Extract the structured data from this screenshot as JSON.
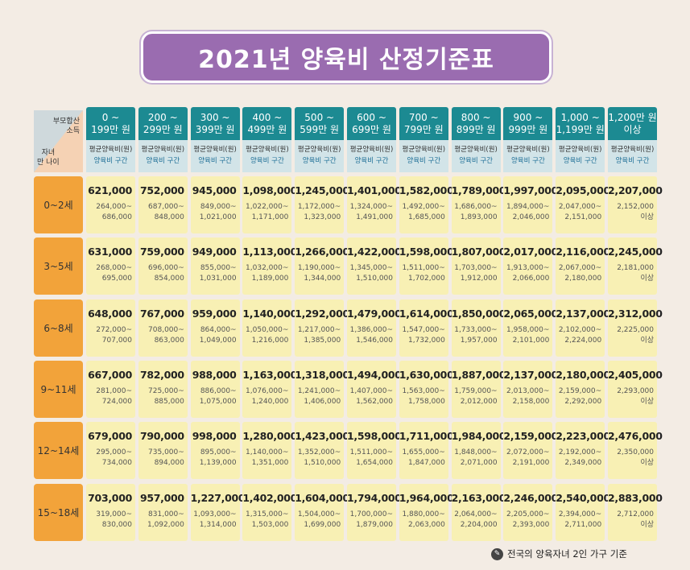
{
  "title": "2021년 양육비 산정기준표",
  "corner": {
    "top_line1": "부모합산",
    "top_line2": "소득",
    "bottom_line1": "자녀",
    "bottom_line2": "만 나이"
  },
  "sub_header": {
    "line1": "평균양육비(원)",
    "line2": "양육비 구간"
  },
  "income_brackets": [
    {
      "l1": "0 ~",
      "l2": "199만 원"
    },
    {
      "l1": "200 ~",
      "l2": "299만 원"
    },
    {
      "l1": "300 ~",
      "l2": "399만 원"
    },
    {
      "l1": "400 ~",
      "l2": "499만 원"
    },
    {
      "l1": "500 ~",
      "l2": "599만 원"
    },
    {
      "l1": "600 ~",
      "l2": "699만 원"
    },
    {
      "l1": "700 ~",
      "l2": "799만 원"
    },
    {
      "l1": "800 ~",
      "l2": "899만 원"
    },
    {
      "l1": "900 ~",
      "l2": "999만 원"
    },
    {
      "l1": "1,000 ~",
      "l2": "1,199만 원"
    },
    {
      "l1": "1,200만 원",
      "l2": "이상"
    }
  ],
  "rows": [
    {
      "age": "0~2세",
      "cells": [
        {
          "avg": "621,000",
          "r1": "264,000~",
          "r2": "686,000"
        },
        {
          "avg": "752,000",
          "r1": "687,000~",
          "r2": "848,000"
        },
        {
          "avg": "945,000",
          "r1": "849,000~",
          "r2": "1,021,000"
        },
        {
          "avg": "1,098,000",
          "r1": "1,022,000~",
          "r2": "1,171,000"
        },
        {
          "avg": "1,245,000",
          "r1": "1,172,000~",
          "r2": "1,323,000"
        },
        {
          "avg": "1,401,000",
          "r1": "1,324,000~",
          "r2": "1,491,000"
        },
        {
          "avg": "1,582,000",
          "r1": "1,492,000~",
          "r2": "1,685,000"
        },
        {
          "avg": "1,789,000",
          "r1": "1,686,000~",
          "r2": "1,893,000"
        },
        {
          "avg": "1,997,000",
          "r1": "1,894,000~",
          "r2": "2,046,000"
        },
        {
          "avg": "2,095,000",
          "r1": "2,047,000~",
          "r2": "2,151,000"
        },
        {
          "avg": "2,207,000",
          "r1": "2,152,000",
          "r2": "이상"
        }
      ]
    },
    {
      "age": "3~5세",
      "cells": [
        {
          "avg": "631,000",
          "r1": "268,000~",
          "r2": "695,000"
        },
        {
          "avg": "759,000",
          "r1": "696,000~",
          "r2": "854,000"
        },
        {
          "avg": "949,000",
          "r1": "855,000~",
          "r2": "1,031,000"
        },
        {
          "avg": "1,113,000",
          "r1": "1,032,000~",
          "r2": "1,189,000"
        },
        {
          "avg": "1,266,000",
          "r1": "1,190,000~",
          "r2": "1,344,000"
        },
        {
          "avg": "1,422,000",
          "r1": "1,345,000~",
          "r2": "1,510,000"
        },
        {
          "avg": "1,598,000",
          "r1": "1,511,000~",
          "r2": "1,702,000"
        },
        {
          "avg": "1,807,000",
          "r1": "1,703,000~",
          "r2": "1,912,000"
        },
        {
          "avg": "2,017,000",
          "r1": "1,913,000~",
          "r2": "2,066,000"
        },
        {
          "avg": "2,116,000",
          "r1": "2,067,000~",
          "r2": "2,180,000"
        },
        {
          "avg": "2,245,000",
          "r1": "2,181,000",
          "r2": "이상"
        }
      ]
    },
    {
      "age": "6~8세",
      "cells": [
        {
          "avg": "648,000",
          "r1": "272,000~",
          "r2": "707,000"
        },
        {
          "avg": "767,000",
          "r1": "708,000~",
          "r2": "863,000"
        },
        {
          "avg": "959,000",
          "r1": "864,000~",
          "r2": "1,049,000"
        },
        {
          "avg": "1,140,000",
          "r1": "1,050,000~",
          "r2": "1,216,000"
        },
        {
          "avg": "1,292,000",
          "r1": "1,217,000~",
          "r2": "1,385,000"
        },
        {
          "avg": "1,479,000",
          "r1": "1,386,000~",
          "r2": "1,546,000"
        },
        {
          "avg": "1,614,000",
          "r1": "1,547,000~",
          "r2": "1,732,000"
        },
        {
          "avg": "1,850,000",
          "r1": "1,733,000~",
          "r2": "1,957,000"
        },
        {
          "avg": "2,065,000",
          "r1": "1,958,000~",
          "r2": "2,101,000"
        },
        {
          "avg": "2,137,000",
          "r1": "2,102,000~",
          "r2": "2,224,000"
        },
        {
          "avg": "2,312,000",
          "r1": "2,225,000",
          "r2": "이상"
        }
      ]
    },
    {
      "age": "9~11세",
      "cells": [
        {
          "avg": "667,000",
          "r1": "281,000~",
          "r2": "724,000"
        },
        {
          "avg": "782,000",
          "r1": "725,000~",
          "r2": "885,000"
        },
        {
          "avg": "988,000",
          "r1": "886,000~",
          "r2": "1,075,000"
        },
        {
          "avg": "1,163,000",
          "r1": "1,076,000~",
          "r2": "1,240,000"
        },
        {
          "avg": "1,318,000",
          "r1": "1,241,000~",
          "r2": "1,406,000"
        },
        {
          "avg": "1,494,000",
          "r1": "1,407,000~",
          "r2": "1,562,000"
        },
        {
          "avg": "1,630,000",
          "r1": "1,563,000~",
          "r2": "1,758,000"
        },
        {
          "avg": "1,887,000",
          "r1": "1,759,000~",
          "r2": "2,012,000"
        },
        {
          "avg": "2,137,000",
          "r1": "2,013,000~",
          "r2": "2,158,000"
        },
        {
          "avg": "2,180,000",
          "r1": "2,159,000~",
          "r2": "2,292,000"
        },
        {
          "avg": "2,405,000",
          "r1": "2,293,000",
          "r2": "이상"
        }
      ]
    },
    {
      "age": "12~14세",
      "cells": [
        {
          "avg": "679,000",
          "r1": "295,000~",
          "r2": "734,000"
        },
        {
          "avg": "790,000",
          "r1": "735,000~",
          "r2": "894,000"
        },
        {
          "avg": "998,000",
          "r1": "895,000~",
          "r2": "1,139,000"
        },
        {
          "avg": "1,280,000",
          "r1": "1,140,000~",
          "r2": "1,351,000"
        },
        {
          "avg": "1,423,000",
          "r1": "1,352,000~",
          "r2": "1,510,000"
        },
        {
          "avg": "1,598,000",
          "r1": "1,511,000~",
          "r2": "1,654,000"
        },
        {
          "avg": "1,711,000",
          "r1": "1,655,000~",
          "r2": "1,847,000"
        },
        {
          "avg": "1,984,000",
          "r1": "1,848,000~",
          "r2": "2,071,000"
        },
        {
          "avg": "2,159,000",
          "r1": "2,072,000~",
          "r2": "2,191,000"
        },
        {
          "avg": "2,223,000",
          "r1": "2,192,000~",
          "r2": "2,349,000"
        },
        {
          "avg": "2,476,000",
          "r1": "2,350,000",
          "r2": "이상"
        }
      ]
    },
    {
      "age": "15~18세",
      "cells": [
        {
          "avg": "703,000",
          "r1": "319,000~",
          "r2": "830,000"
        },
        {
          "avg": "957,000",
          "r1": "831,000~",
          "r2": "1,092,000"
        },
        {
          "avg": "1,227,000",
          "r1": "1,093,000~",
          "r2": "1,314,000"
        },
        {
          "avg": "1,402,000",
          "r1": "1,315,000~",
          "r2": "1,503,000"
        },
        {
          "avg": "1,604,000",
          "r1": "1,504,000~",
          "r2": "1,699,000"
        },
        {
          "avg": "1,794,000",
          "r1": "1,700,000~",
          "r2": "1,879,000"
        },
        {
          "avg": "1,964,000",
          "r1": "1,880,000~",
          "r2": "2,063,000"
        },
        {
          "avg": "2,163,000",
          "r1": "2,064,000~",
          "r2": "2,204,000"
        },
        {
          "avg": "2,246,000",
          "r1": "2,205,000~",
          "r2": "2,393,000"
        },
        {
          "avg": "2,540,000",
          "r1": "2,394,000~",
          "r2": "2,711,000"
        },
        {
          "avg": "2,883,000",
          "r1": "2,712,000",
          "r2": "이상"
        }
      ]
    }
  ],
  "footnote": "전국의 양육자녀 2인 가구 기준",
  "footnote_icon": "pen-icon"
}
